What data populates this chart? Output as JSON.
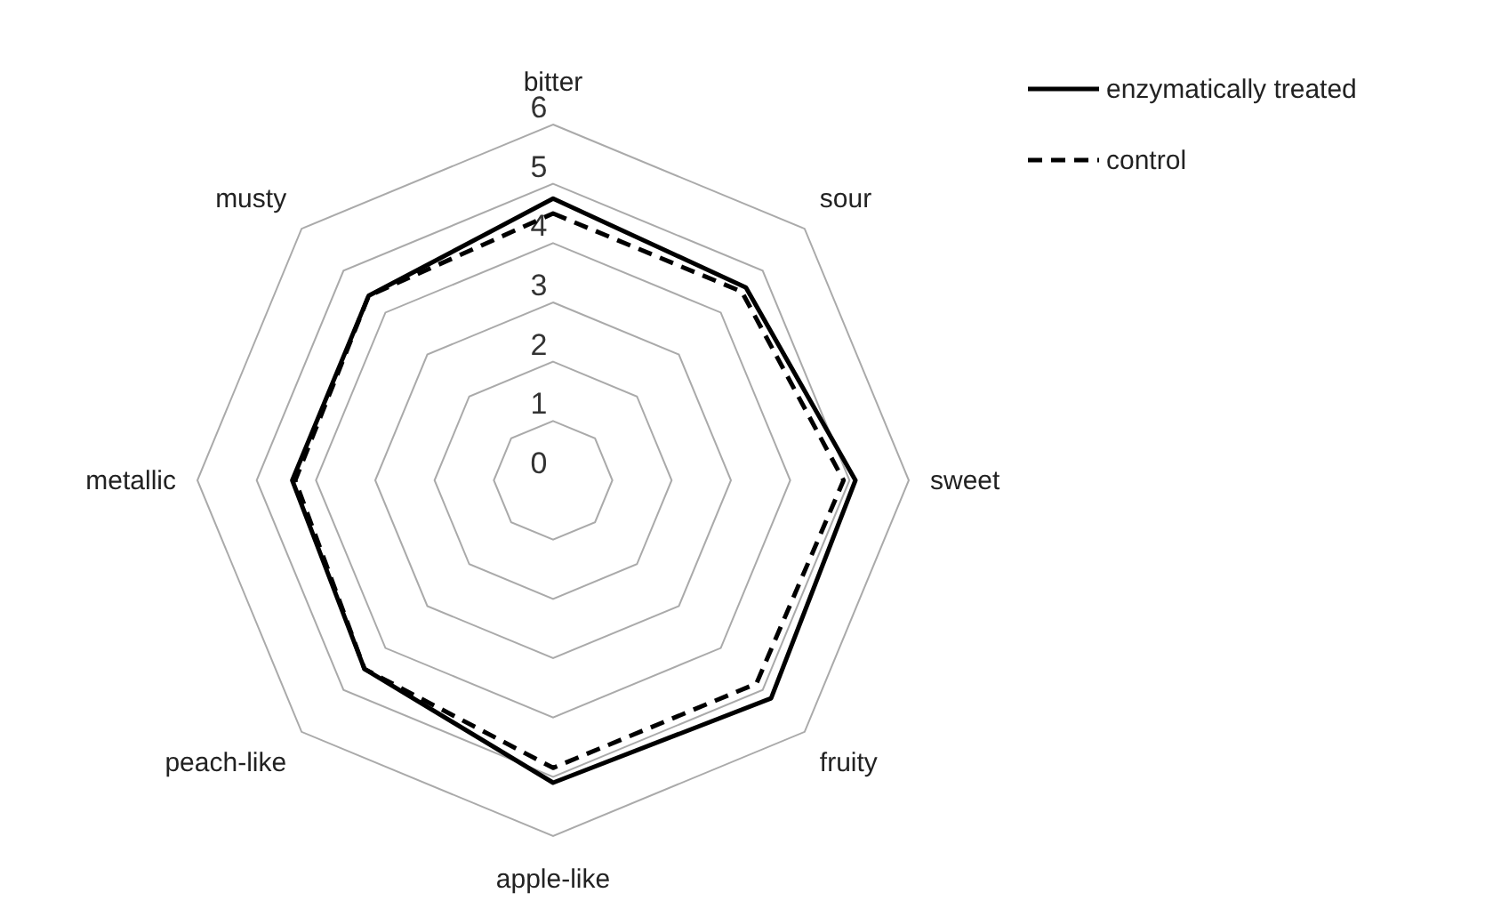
{
  "chart_data": {
    "type": "radar",
    "categories": [
      "bitter",
      "sour",
      "sweet",
      "fruity",
      "apple-like",
      "peach-like",
      "metallic",
      "musty"
    ],
    "series": [
      {
        "name": "enzymatically treated",
        "color": "#000000",
        "line_style": "solid",
        "values": [
          4.75,
          4.6,
          5.1,
          5.2,
          5.1,
          4.5,
          4.4,
          4.4
        ]
      },
      {
        "name": "control",
        "color": "#000000",
        "line_style": "dashed",
        "values": [
          4.5,
          4.5,
          4.9,
          4.85,
          4.85,
          4.5,
          4.35,
          4.4
        ]
      }
    ],
    "ylim": [
      0,
      6
    ],
    "yticks": [
      0,
      1,
      2,
      3,
      4,
      5,
      6
    ],
    "grid": true,
    "legend": "top right",
    "marker": "none"
  }
}
